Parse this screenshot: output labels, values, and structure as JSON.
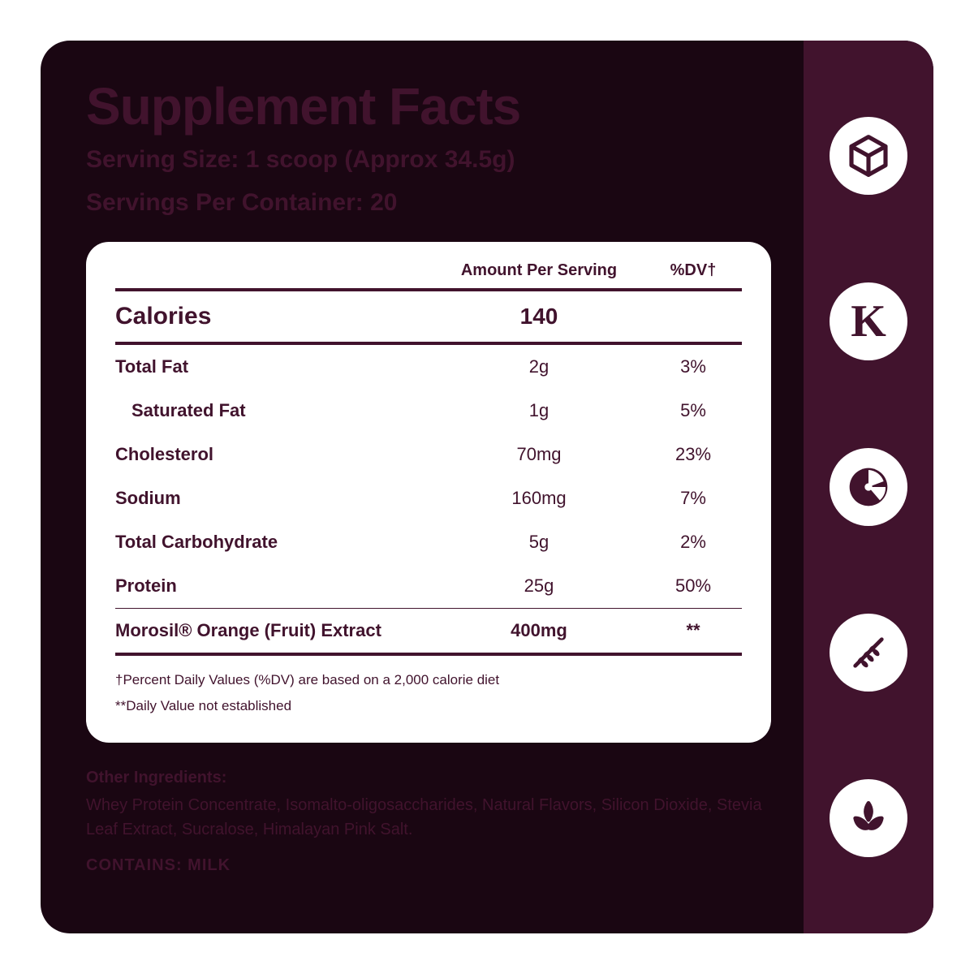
{
  "colors": {
    "panel_bg": "#1a0612",
    "sidebar_bg": "#41132d",
    "card_bg": "#ffffff",
    "text_dark": "#41132d",
    "badge_bg": "#ffffff"
  },
  "title": "Supplement Facts",
  "serving_size_line": "Serving Size: 1 scoop (Approx 34.5g)",
  "servings_per_line": "Servings Per Container: 20",
  "table": {
    "header_amount": "Amount Per Serving",
    "header_dv": "%DV†",
    "calories": {
      "name": "Calories",
      "amount": "140",
      "dv": ""
    },
    "rows": [
      {
        "name": "Total Fat",
        "amount": "2g",
        "dv": "3%",
        "indent": false
      },
      {
        "name": "Saturated Fat",
        "amount": "1g",
        "dv": "5%",
        "indent": true
      },
      {
        "name": "Cholesterol",
        "amount": "70mg",
        "dv": "23%",
        "indent": false
      },
      {
        "name": "Sodium",
        "amount": "160mg",
        "dv": "7%",
        "indent": false
      },
      {
        "name": "Total Carbohydrate",
        "amount": "5g",
        "dv": "2%",
        "indent": false
      },
      {
        "name": "Protein",
        "amount": "25g",
        "dv": "50%",
        "indent": false
      }
    ],
    "morosil": {
      "name": "Morosil® Orange (Fruit) Extract",
      "amount": "400mg",
      "dv": "**"
    }
  },
  "footnote1": "†Percent Daily Values (%DV) are based on a 2,000 calorie diet",
  "footnote2": "**Daily Value not established",
  "other_label": "Other Ingredients:",
  "other_text": "Whey Protein Concentrate, Isomalto-oligosaccharides, Natural Flavors, Silicon Dioxide, Stevia Leaf Extract, Sucralose, Himalayan Pink Salt.",
  "contains": "CONTAINS: MILK",
  "badges": [
    {
      "name": "cube-icon"
    },
    {
      "name": "kosher-icon"
    },
    {
      "name": "citrus-icon"
    },
    {
      "name": "wheat-icon"
    },
    {
      "name": "leaf-icon"
    }
  ]
}
